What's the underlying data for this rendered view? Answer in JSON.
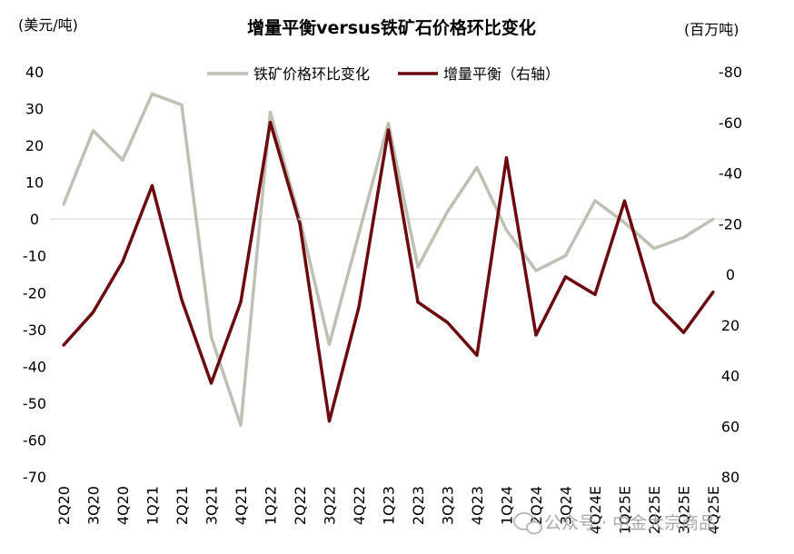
{
  "chart_data": {
    "type": "line",
    "title": "增量平衡versus铁矿石价格环比变化",
    "left_unit": "(美元/吨)",
    "right_unit": "(百万吨)",
    "categories": [
      "2Q20",
      "3Q20",
      "4Q20",
      "1Q21",
      "2Q21",
      "3Q21",
      "4Q21",
      "1Q22",
      "2Q22",
      "3Q22",
      "4Q22",
      "1Q23",
      "2Q23",
      "3Q23",
      "4Q23",
      "1Q24",
      "2Q24",
      "3Q24",
      "4Q24E",
      "1Q25E",
      "2Q25E",
      "3Q25E",
      "4Q25E"
    ],
    "left_axis": {
      "ylim": [
        -70,
        40
      ],
      "ticks": [
        40,
        30,
        20,
        10,
        0,
        -10,
        -20,
        -30,
        -40,
        -50,
        -60,
        -70
      ],
      "tick_labels": [
        "40",
        "30",
        "20",
        "10",
        "0",
        "-10",
        "-20",
        "-30",
        "-40",
        "-50",
        "-60",
        "-70"
      ]
    },
    "right_axis": {
      "ylim": [
        -80,
        80
      ],
      "inverted": true,
      "ticks": [
        -80,
        -60,
        -40,
        -20,
        0,
        20,
        40,
        60,
        80
      ],
      "tick_labels": [
        "-80",
        "-60",
        "-40",
        "-20",
        "0",
        "20",
        "40",
        "60",
        "80"
      ]
    },
    "series": [
      {
        "name": "铁矿价格环比变化",
        "axis": "left",
        "color": "#c0bfb4",
        "values": [
          4,
          24,
          16,
          34,
          31,
          -32,
          -56,
          29,
          0,
          -34,
          -4,
          26,
          -13,
          2,
          14,
          -3,
          -14,
          -10,
          5,
          -1,
          -8,
          -5,
          0
        ]
      },
      {
        "name": "增量平衡（右轴）",
        "axis": "right",
        "color": "#6b0b0f",
        "values": [
          28,
          15,
          -5,
          -35,
          10,
          43,
          11,
          -60,
          -20,
          58,
          13,
          -57,
          11,
          19,
          32,
          -46,
          24,
          1,
          8,
          -29,
          11,
          23,
          7
        ]
      }
    ],
    "legend_position": "top-center",
    "zero_line": true
  },
  "watermark": {
    "text": "公众号 · 中金大宗商品"
  }
}
